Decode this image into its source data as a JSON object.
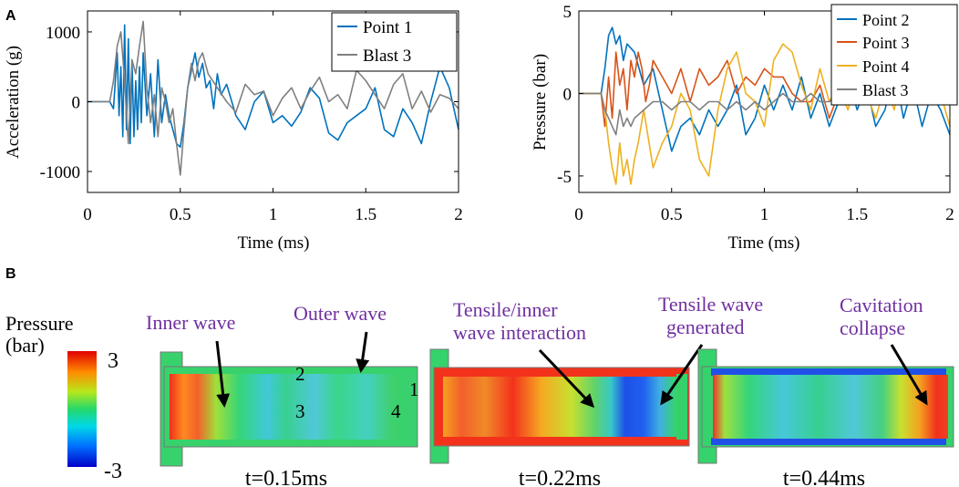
{
  "panel_labels": {
    "a": "A",
    "b": "B"
  },
  "colors": {
    "series_blue": "#0072BD",
    "series_red": "#D95319",
    "series_yellow": "#EDB120",
    "series_gray": "#808080",
    "annotation_purple": "#7030A0",
    "domain_body": "#36d26a",
    "domain_red": "#f32d1e",
    "domain_blue": "#1f39e0"
  },
  "chart_data": [
    {
      "type": "line",
      "id": "acceleration",
      "title": "",
      "xlabel": "Time (ms)",
      "ylabel": "Acceleration (g)",
      "xlim": [
        0,
        2
      ],
      "ylim": [
        -1300,
        1300
      ],
      "xticks": [
        0,
        0.5,
        1,
        1.5,
        2
      ],
      "xtick_labels": [
        "0",
        "0.5",
        "1",
        "1.5",
        "2"
      ],
      "yticks": [
        -1000,
        0,
        1000
      ],
      "ytick_labels": [
        "-1000",
        "0",
        "1000"
      ],
      "grid": false,
      "legend": "top-right",
      "series": [
        {
          "name": "Point 1",
          "color": "#0072BD",
          "x": [
            0,
            0.12,
            0.14,
            0.15,
            0.16,
            0.17,
            0.18,
            0.19,
            0.2,
            0.21,
            0.22,
            0.23,
            0.24,
            0.25,
            0.26,
            0.27,
            0.28,
            0.29,
            0.3,
            0.32,
            0.34,
            0.36,
            0.38,
            0.4,
            0.42,
            0.44,
            0.46,
            0.48,
            0.5,
            0.52,
            0.54,
            0.56,
            0.58,
            0.6,
            0.62,
            0.64,
            0.66,
            0.68,
            0.7,
            0.72,
            0.75,
            0.8,
            0.85,
            0.9,
            0.95,
            1.0,
            1.05,
            1.1,
            1.15,
            1.2,
            1.25,
            1.3,
            1.35,
            1.4,
            1.45,
            1.5,
            1.55,
            1.6,
            1.65,
            1.7,
            1.75,
            1.8,
            1.85,
            1.9,
            1.95,
            2.0
          ],
          "values": [
            0,
            0,
            -100,
            300,
            700,
            -200,
            500,
            -500,
            1100,
            -400,
            900,
            -600,
            600,
            -500,
            300,
            -400,
            500,
            -300,
            700,
            -200,
            400,
            -500,
            600,
            -300,
            100,
            -200,
            -400,
            -600,
            -650,
            -300,
            200,
            450,
            700,
            350,
            550,
            200,
            300,
            -100,
            400,
            100,
            250,
            -200,
            -400,
            0,
            150,
            -300,
            -200,
            -350,
            -150,
            200,
            50,
            -450,
            -550,
            -300,
            -200,
            -100,
            200,
            -400,
            -500,
            -100,
            -300,
            -600,
            0,
            500,
            200,
            -400
          ]
        },
        {
          "name": "Blast 3",
          "color": "#808080",
          "x": [
            0,
            0.12,
            0.14,
            0.16,
            0.18,
            0.2,
            0.22,
            0.24,
            0.26,
            0.28,
            0.3,
            0.32,
            0.34,
            0.36,
            0.38,
            0.4,
            0.42,
            0.44,
            0.46,
            0.48,
            0.5,
            0.52,
            0.54,
            0.56,
            0.58,
            0.6,
            0.62,
            0.65,
            0.7,
            0.75,
            0.8,
            0.85,
            0.9,
            0.95,
            1.0,
            1.05,
            1.1,
            1.15,
            1.2,
            1.25,
            1.3,
            1.35,
            1.4,
            1.45,
            1.5,
            1.55,
            1.6,
            1.65,
            1.7,
            1.75,
            1.8,
            1.85,
            1.9,
            1.95,
            2.0
          ],
          "values": [
            0,
            0,
            300,
            800,
            1000,
            300,
            -600,
            600,
            400,
            800,
            1150,
            200,
            -300,
            100,
            -500,
            200,
            0,
            -300,
            -100,
            -600,
            -1050,
            -400,
            200,
            550,
            300,
            600,
            700,
            400,
            200,
            0,
            -150,
            250,
            100,
            150,
            -200,
            50,
            200,
            -100,
            150,
            350,
            0,
            100,
            -100,
            450,
            300,
            100,
            -100,
            250,
            400,
            -100,
            150,
            -150,
            100,
            50,
            -100
          ]
        }
      ]
    },
    {
      "type": "line",
      "id": "pressure",
      "title": "",
      "xlabel": "Time (ms)",
      "ylabel": "Pressure (bar)",
      "xlim": [
        0,
        2
      ],
      "ylim": [
        -6,
        5
      ],
      "xticks": [
        0,
        0.5,
        1,
        1.5,
        2
      ],
      "xtick_labels": [
        "0",
        "0.5",
        "1",
        "1.5",
        "2"
      ],
      "yticks": [
        -5,
        0,
        5
      ],
      "ytick_labels": [
        "-5",
        "0",
        "5"
      ],
      "grid": false,
      "legend": "top-right",
      "series": [
        {
          "name": "Point 2",
          "color": "#0072BD",
          "x": [
            0,
            0.12,
            0.14,
            0.16,
            0.18,
            0.2,
            0.22,
            0.24,
            0.26,
            0.3,
            0.35,
            0.4,
            0.45,
            0.5,
            0.55,
            0.6,
            0.65,
            0.7,
            0.75,
            0.8,
            0.85,
            0.9,
            0.95,
            1.0,
            1.05,
            1.1,
            1.15,
            1.2,
            1.25,
            1.3,
            1.35,
            1.4,
            1.45,
            1.5,
            1.55,
            1.6,
            1.65,
            1.7,
            1.75,
            1.8,
            1.85,
            1.9,
            1.95,
            2.0
          ],
          "values": [
            0,
            0,
            1.5,
            3.5,
            4.0,
            3.0,
            3.5,
            2.0,
            3.0,
            2.5,
            0.5,
            1.5,
            -1.0,
            -3.5,
            -2.0,
            -1.5,
            -2.5,
            -1.0,
            -2.0,
            -1.0,
            0.5,
            -2.5,
            -1.5,
            0.5,
            -1.0,
            0.5,
            -1.0,
            1.0,
            -1.5,
            0.0,
            -2.0,
            -0.5,
            1.0,
            -1.0,
            0.5,
            -2.0,
            -1.0,
            1.5,
            -1.5,
            0.5,
            -2.0,
            0.0,
            -1.0,
            -2.5
          ]
        },
        {
          "name": "Point 3",
          "color": "#D95319",
          "x": [
            0,
            0.12,
            0.14,
            0.16,
            0.18,
            0.2,
            0.22,
            0.24,
            0.26,
            0.28,
            0.3,
            0.32,
            0.34,
            0.36,
            0.38,
            0.4,
            0.45,
            0.5,
            0.55,
            0.6,
            0.65,
            0.7,
            0.75,
            0.8,
            0.85,
            0.9,
            0.95,
            1.0,
            1.05,
            1.1,
            1.15,
            1.2,
            1.25,
            1.3,
            1.35,
            1.4,
            1.45,
            1.5,
            1.55,
            1.6,
            1.65,
            1.7,
            1.75,
            1.8,
            1.85,
            1.9,
            1.95,
            2.0
          ],
          "values": [
            0,
            0,
            -2.0,
            1.0,
            -1.5,
            2.5,
            0.5,
            1.5,
            -1.0,
            2.0,
            1.0,
            2.5,
            1.5,
            -0.5,
            0.5,
            2.0,
            1.0,
            0.0,
            1.5,
            -0.5,
            1.5,
            0.5,
            1.0,
            2.0,
            0.0,
            1.0,
            0.5,
            1.5,
            1.0,
            1.0,
            0.0,
            -0.5,
            -0.5,
            0.5,
            -1.5,
            0.0,
            1.5,
            2.0,
            1.0,
            0.5,
            -0.5,
            0.0,
            1.5,
            1.0,
            0.5,
            1.0,
            0.5,
            0.5
          ]
        },
        {
          "name": "Point 4",
          "color": "#EDB120",
          "x": [
            0,
            0.12,
            0.14,
            0.16,
            0.18,
            0.2,
            0.22,
            0.24,
            0.26,
            0.28,
            0.3,
            0.32,
            0.35,
            0.4,
            0.45,
            0.5,
            0.55,
            0.6,
            0.65,
            0.7,
            0.75,
            0.8,
            0.85,
            0.9,
            0.95,
            1.0,
            1.05,
            1.1,
            1.15,
            1.2,
            1.25,
            1.3,
            1.35,
            1.4,
            1.45,
            1.5,
            1.55,
            1.6,
            1.65,
            1.7,
            1.75,
            1.8,
            1.85,
            1.9,
            1.95,
            2.0
          ],
          "values": [
            0,
            0,
            -1.0,
            -3.0,
            -4.5,
            -5.5,
            -3.0,
            -5.0,
            -4.0,
            -5.5,
            -4.0,
            -3.0,
            -1.0,
            -4.5,
            -3.0,
            -2.0,
            0.0,
            -1.0,
            -4.0,
            -5.0,
            -1.0,
            1.5,
            2.5,
            0.0,
            -0.5,
            -2.0,
            2.0,
            3.0,
            2.5,
            0.5,
            -1.0,
            1.5,
            -0.5,
            0.5,
            -1.0,
            1.0,
            0.0,
            -1.5,
            0.5,
            -1.0,
            2.0,
            3.0,
            0.5,
            -0.5,
            0.0,
            -2.0
          ]
        },
        {
          "name": "Blast 3",
          "color": "#808080",
          "x": [
            0,
            0.12,
            0.14,
            0.16,
            0.18,
            0.2,
            0.22,
            0.24,
            0.26,
            0.28,
            0.3,
            0.35,
            0.4,
            0.45,
            0.5,
            0.55,
            0.6,
            0.65,
            0.7,
            0.75,
            0.8,
            0.85,
            0.9,
            0.95,
            1.0,
            1.05,
            1.1,
            1.15,
            1.2,
            1.25,
            1.3,
            1.35,
            1.4,
            1.45,
            1.5,
            1.55,
            1.6,
            1.65,
            1.7,
            1.75,
            1.8,
            1.85,
            1.9,
            1.95,
            2.0
          ],
          "values": [
            0,
            0,
            -1.0,
            -1.5,
            -2.0,
            -2.5,
            -1.0,
            -2.0,
            -1.5,
            -2.0,
            -1.5,
            -1.0,
            -0.5,
            -0.5,
            -1.0,
            -0.5,
            -0.5,
            -1.0,
            -0.5,
            -0.5,
            -1.0,
            -0.5,
            -1.0,
            -0.5,
            -1.0,
            -0.5,
            0.0,
            -0.5,
            -0.5,
            0.0,
            -0.5,
            -0.5,
            0.0,
            -0.5,
            -0.5,
            0.0,
            -0.5,
            0.0,
            -0.5,
            0.0,
            0.0,
            -0.5,
            0.5,
            0.0,
            0.0
          ]
        }
      ]
    }
  ],
  "colorbar": {
    "title_line1": "Pressure",
    "title_line2": "(bar)",
    "max_label": "3",
    "min_label": "-3",
    "max_value": 3,
    "min_value": -3
  },
  "snapshots": {
    "s1": {
      "time": "t=0.15ms",
      "ann_inner": "Inner wave",
      "ann_outer": "Outer wave",
      "point_1": "1",
      "point_2": "2",
      "point_3": "3",
      "point_4": "4"
    },
    "s2": {
      "time": "t=0.22ms",
      "ann_tensile_line1": "Tensile/inner",
      "ann_tensile_line2": "wave interaction",
      "ann_generated_line1": "Tensile wave",
      "ann_generated_line2": "generated"
    },
    "s3": {
      "time": "t=0.44ms",
      "ann_cavitation_line1": "Cavitation",
      "ann_cavitation_line2": "collapse"
    }
  }
}
